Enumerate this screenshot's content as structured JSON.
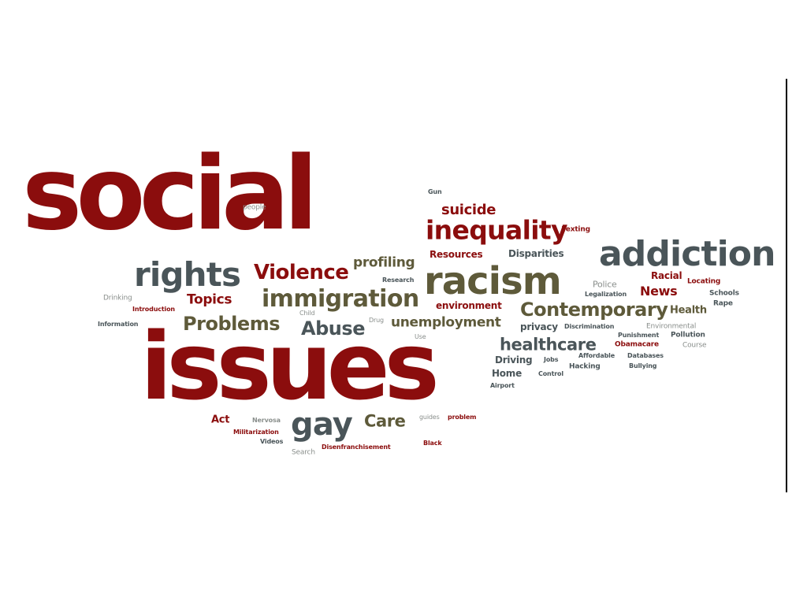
{
  "palette": {
    "maroon": "#8b0d0d",
    "slate": "#4a5559",
    "olive": "#5e5a3a",
    "grey": "#8a8f8c"
  },
  "word_cloud": {
    "words": [
      {
        "text": "social",
        "color": "maroon"
      },
      {
        "text": "issues",
        "color": "maroon"
      },
      {
        "text": "addiction",
        "color": "slate"
      },
      {
        "text": "racism",
        "color": "olive"
      },
      {
        "text": "rights",
        "color": "slate"
      },
      {
        "text": "inequality",
        "color": "maroon"
      },
      {
        "text": "immigration",
        "color": "olive"
      },
      {
        "text": "Violence",
        "color": "maroon"
      },
      {
        "text": "gay",
        "color": "slate"
      },
      {
        "text": "Contemporary",
        "color": "olive"
      },
      {
        "text": "healthcare",
        "color": "slate"
      },
      {
        "text": "Problems",
        "color": "olive"
      },
      {
        "text": "Abuse",
        "color": "slate"
      },
      {
        "text": "unemployment",
        "color": "olive"
      },
      {
        "text": "suicide",
        "color": "maroon"
      },
      {
        "text": "profiling",
        "color": "olive"
      },
      {
        "text": "Care",
        "color": "olive"
      },
      {
        "text": "Topics",
        "color": "maroon"
      },
      {
        "text": "News",
        "color": "maroon"
      },
      {
        "text": "Health",
        "color": "olive"
      },
      {
        "text": "Resources",
        "color": "maroon"
      },
      {
        "text": "Disparities",
        "color": "slate"
      },
      {
        "text": "environment",
        "color": "maroon"
      },
      {
        "text": "privacy",
        "color": "slate"
      },
      {
        "text": "Police",
        "color": "grey"
      },
      {
        "text": "Racial",
        "color": "maroon"
      },
      {
        "text": "Driving",
        "color": "slate"
      },
      {
        "text": "Home",
        "color": "slate"
      },
      {
        "text": "Act",
        "color": "maroon"
      },
      {
        "text": "Gun",
        "color": "slate"
      },
      {
        "text": "people",
        "color": "grey"
      },
      {
        "text": "Texting",
        "color": "maroon"
      },
      {
        "text": "Research",
        "color": "slate"
      },
      {
        "text": "Drinking",
        "color": "grey"
      },
      {
        "text": "Introduction",
        "color": "maroon"
      },
      {
        "text": "Information",
        "color": "slate"
      },
      {
        "text": "Child",
        "color": "grey"
      },
      {
        "text": "Drug",
        "color": "grey"
      },
      {
        "text": "Use",
        "color": "grey"
      },
      {
        "text": "Locating",
        "color": "maroon"
      },
      {
        "text": "Schools",
        "color": "slate"
      },
      {
        "text": "Rape",
        "color": "slate"
      },
      {
        "text": "Legalization",
        "color": "slate"
      },
      {
        "text": "Discrimination",
        "color": "slate"
      },
      {
        "text": "Environmental",
        "color": "grey"
      },
      {
        "text": "Punishment",
        "color": "slate"
      },
      {
        "text": "Pollution",
        "color": "slate"
      },
      {
        "text": "Course",
        "color": "grey"
      },
      {
        "text": "Obamacare",
        "color": "maroon"
      },
      {
        "text": "Affordable",
        "color": "slate"
      },
      {
        "text": "Databases",
        "color": "slate"
      },
      {
        "text": "Bullying",
        "color": "slate"
      },
      {
        "text": "Jobs",
        "color": "slate"
      },
      {
        "text": "Hacking",
        "color": "slate"
      },
      {
        "text": "Control",
        "color": "slate"
      },
      {
        "text": "Airport",
        "color": "slate"
      },
      {
        "text": "Nervosa",
        "color": "grey"
      },
      {
        "text": "Militarization",
        "color": "maroon"
      },
      {
        "text": "Videos",
        "color": "slate"
      },
      {
        "text": "Search",
        "color": "grey"
      },
      {
        "text": "Disenfranchisement",
        "color": "maroon"
      },
      {
        "text": "guides",
        "color": "grey"
      },
      {
        "text": "problem",
        "color": "maroon"
      },
      {
        "text": "Black",
        "color": "maroon"
      }
    ]
  }
}
